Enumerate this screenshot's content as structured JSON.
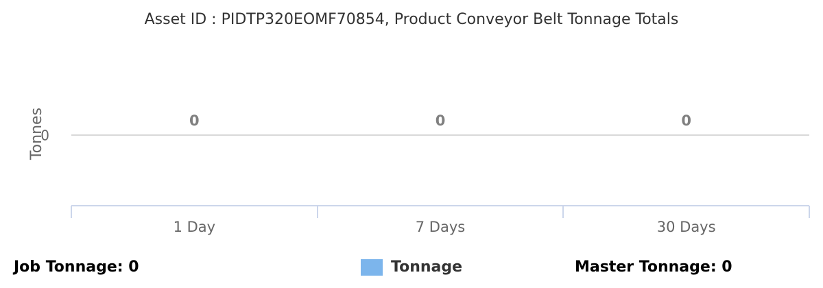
{
  "chart_data": {
    "type": "bar",
    "title": "Asset ID : PIDTP320EOMF70854, Product Conveyor Belt Tonnage Totals",
    "xlabel": "",
    "ylabel": "Tonnes",
    "categories": [
      "1 Day",
      "7 Days",
      "30 Days"
    ],
    "series": [
      {
        "name": "Tonnage",
        "values": [
          0,
          0,
          0
        ],
        "color": "#7cb5ec"
      }
    ],
    "y_ticks": [
      "0"
    ],
    "data_labels": [
      "0",
      "0",
      "0"
    ],
    "legend_position": "bottom-center",
    "grid": true
  },
  "footer": {
    "job_tonnage": "Job Tonnage: 0",
    "master_tonnage": "Master Tonnage: 0"
  }
}
